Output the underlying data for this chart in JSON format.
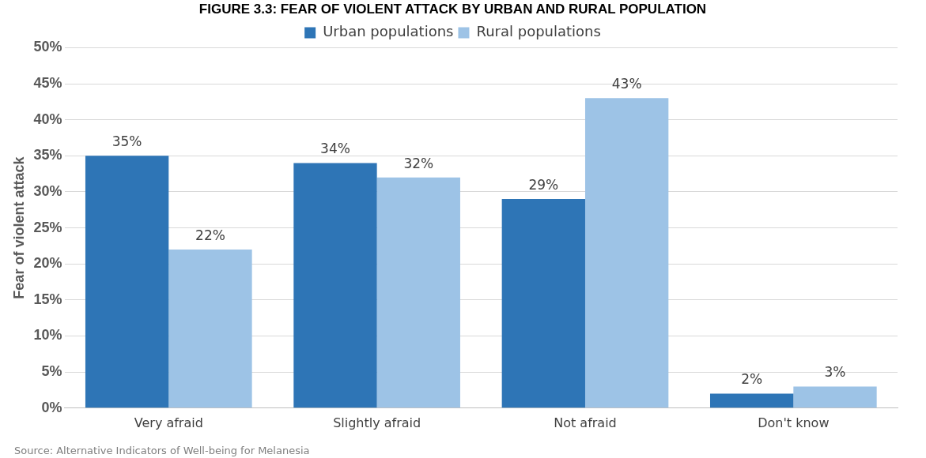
{
  "chart_data": {
    "type": "bar",
    "title": "FIGURE 3.3: FEAR OF VIOLENT ATTACK BY URBAN AND RURAL POPULATION",
    "ylabel": "Fear of violent attack",
    "categories": [
      "Very afraid",
      "Slightly afraid",
      "Not afraid",
      "Don't know"
    ],
    "series": [
      {
        "name": "Urban populations",
        "color": "#2e75b6",
        "values": [
          35,
          34,
          29,
          2
        ],
        "value_labels": [
          "35%",
          "34%",
          "29%",
          "2%"
        ]
      },
      {
        "name": "Rural populations",
        "color": "#9dc3e6",
        "values": [
          22,
          32,
          43,
          3
        ],
        "value_labels": [
          "22%",
          "32%",
          "43%",
          "3%"
        ]
      }
    ],
    "ylim": [
      0,
      50
    ],
    "yticks": [
      {
        "value": 0,
        "label": "0%"
      },
      {
        "value": 5,
        "label": "5%"
      },
      {
        "value": 10,
        "label": "10%"
      },
      {
        "value": 15,
        "label": "15%"
      },
      {
        "value": 20,
        "label": "20%"
      },
      {
        "value": 25,
        "label": "25%"
      },
      {
        "value": 30,
        "label": "30%"
      },
      {
        "value": 35,
        "label": "35%"
      },
      {
        "value": 40,
        "label": "40%"
      },
      {
        "value": 45,
        "label": "45%"
      },
      {
        "value": 50,
        "label": "50%"
      }
    ],
    "grid": "y",
    "legend": "top",
    "annotations": [
      "Source: Alternative Indicators of Well-being for Melanesia"
    ]
  }
}
